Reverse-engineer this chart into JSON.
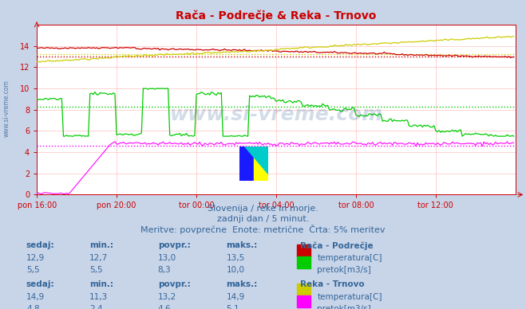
{
  "title": "Rača - Podrečje & Reka - Trnovo",
  "title_color": "#cc0000",
  "bg_color": "#c8d4e8",
  "plot_bg_color": "#ffffff",
  "grid_color": "#ff9999",
  "axis_color": "#cc0000",
  "text_color": "#336699",
  "xlabel_ticks": [
    "pon 16:00",
    "pon 20:00",
    "tor 00:00",
    "tor 04:00",
    "tor 08:00",
    "tor 12:00"
  ],
  "n_points": 288,
  "ylim": [
    0,
    16
  ],
  "yticks": [
    0,
    2,
    4,
    6,
    8,
    10,
    12,
    14
  ],
  "watermark": "www.si-vreme.com",
  "subtitle1": "Slovenija / reke in morje.",
  "subtitle2": "zadnji dan / 5 minut.",
  "subtitle3": "Meritve: povprečne  Enote: metrične  Črta: 5% meritev",
  "left_label": "www.si-vreme.com",
  "raca_temp_color": "#cc0000",
  "raca_flow_color": "#00cc00",
  "trnovo_temp_color": "#cccc00",
  "trnovo_flow_color": "#ff00ff",
  "raca_temp_avg": 13.0,
  "raca_flow_avg": 8.3,
  "trnovo_temp_avg": 13.2,
  "trnovo_flow_avg": 4.6,
  "table_headers": [
    "sedaj:",
    "min.:",
    "povpr.:",
    "maks.:"
  ],
  "raca_title": "Rača - Podrečje",
  "raca_temp_label": "temperatura[C]",
  "raca_flow_label": "pretok[m3/s]",
  "raca_temp_vals": [
    12.9,
    12.7,
    13.0,
    13.5
  ],
  "raca_flow_vals": [
    5.5,
    5.5,
    8.3,
    10.0
  ],
  "trnovo_title": "Reka - Trnovo",
  "trnovo_temp_label": "temperatura[C]",
  "trnovo_flow_label": "pretok[m3/s]",
  "trnovo_temp_vals": [
    14.9,
    11.3,
    13.2,
    14.9
  ],
  "trnovo_flow_vals": [
    4.8,
    2.4,
    4.6,
    5.1
  ]
}
